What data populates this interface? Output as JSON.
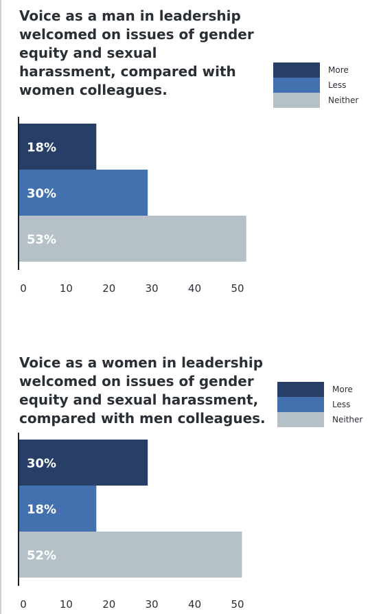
{
  "colors": {
    "more": "#273f66",
    "less": "#4371b0",
    "neither": "#b5c0c7",
    "axis": "#1b1e22",
    "text": "#2a2f36"
  },
  "chart_data": [
    {
      "type": "bar",
      "orientation": "horizontal",
      "title": "Voice as a man in leadership welcomed on issues of gender equity and sexual harassment, compared with women colleagues.",
      "title_lines": [
        "Voice as a man in leadership",
        "welcomed on issues of gender",
        "equity and sexual",
        "harassment, compared with",
        "women colleagues."
      ],
      "categories": [
        "More",
        "Less",
        "Neither"
      ],
      "values": [
        18,
        30,
        53
      ],
      "data_labels": [
        "18%",
        "30%",
        "53%"
      ],
      "xlim": [
        0,
        53
      ],
      "xticks": [
        0,
        10,
        20,
        30,
        40,
        50
      ],
      "legend": {
        "position": "right",
        "entries": [
          "More",
          "Less",
          "Neither"
        ]
      },
      "grid": false,
      "xlabel": "",
      "ylabel": ""
    },
    {
      "type": "bar",
      "orientation": "horizontal",
      "title": "Voice as a women in leadership welcomed on issues of gender equity and sexual harassment, compared with men colleagues.",
      "title_lines": [
        "Voice as a women in leadership",
        "welcomed on issues of gender",
        "equity and sexual harassment,",
        "compared with men colleagues."
      ],
      "categories": [
        "More",
        "Less",
        "Neither"
      ],
      "values": [
        30,
        18,
        52
      ],
      "data_labels": [
        "30%",
        "18%",
        "52%"
      ],
      "xlim": [
        0,
        53
      ],
      "xticks": [
        0,
        10,
        20,
        30,
        40,
        50
      ],
      "legend": {
        "position": "right",
        "entries": [
          "More",
          "Less",
          "Neither"
        ]
      },
      "grid": false,
      "xlabel": "",
      "ylabel": ""
    }
  ]
}
